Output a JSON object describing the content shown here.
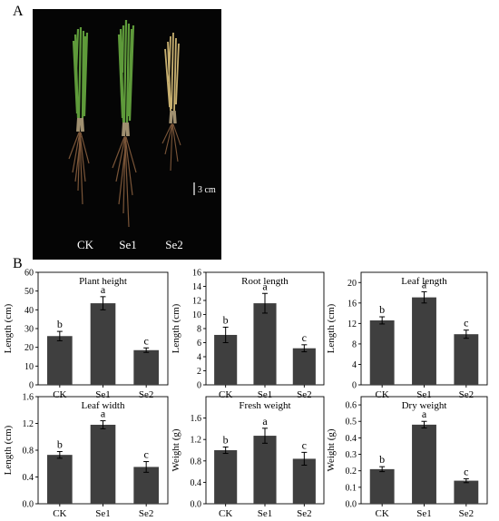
{
  "panel_labels": {
    "a": "A",
    "b": "B"
  },
  "photo": {
    "samples": [
      "CK",
      "Se1",
      "Se2"
    ],
    "scale_label": "3 cm",
    "colors": {
      "background": "#050505",
      "healthy_leaf": "#5e9a3a",
      "yellow_leaf": "#c8b070",
      "root": "#7a5538"
    }
  },
  "colors": {
    "bar": "#3f3f3f",
    "axis": "#000000"
  },
  "chart_data": [
    {
      "type": "bar",
      "title": "Plant height",
      "ylabel": "Length (cm)",
      "categories": [
        "CK",
        "Se1",
        "Se2"
      ],
      "values": [
        26,
        43.5,
        18.5
      ],
      "errors": [
        2.5,
        3.5,
        1.2
      ],
      "letters": [
        "b",
        "a",
        "c"
      ],
      "ylim": [
        0,
        60
      ],
      "yticks": [
        0,
        10,
        20,
        30,
        40,
        50,
        60
      ],
      "ytick_labels": [
        "0",
        "10",
        "20",
        "30",
        "40",
        "50",
        "60"
      ]
    },
    {
      "type": "bar",
      "title": "Root length",
      "ylabel": "Length (cm)",
      "categories": [
        "CK",
        "Se1",
        "Se2"
      ],
      "values": [
        7.1,
        11.6,
        5.2
      ],
      "errors": [
        1.1,
        1.4,
        0.5
      ],
      "letters": [
        "b",
        "a",
        "c"
      ],
      "ylim": [
        0,
        16
      ],
      "yticks": [
        0,
        2,
        4,
        6,
        8,
        10,
        12,
        14,
        16
      ],
      "ytick_labels": [
        "0",
        "2",
        "4",
        "6",
        "8",
        "10",
        "12",
        "14",
        "16"
      ]
    },
    {
      "type": "bar",
      "title": "Leaf length",
      "ylabel": "Length (cm)",
      "categories": [
        "CK",
        "Se1",
        "Se2"
      ],
      "values": [
        12.6,
        17.1,
        9.9
      ],
      "errors": [
        0.7,
        1.1,
        0.8
      ],
      "letters": [
        "b",
        "a",
        "c"
      ],
      "ylim": [
        0,
        22
      ],
      "yticks": [
        0,
        4,
        8,
        12,
        16,
        20
      ],
      "ytick_labels": [
        "0",
        "4",
        "8",
        "12",
        "16",
        "20"
      ]
    },
    {
      "type": "bar",
      "title": "Leaf width",
      "ylabel": "Length (cm)",
      "categories": [
        "CK",
        "Se1",
        "Se2"
      ],
      "values": [
        0.73,
        1.18,
        0.55
      ],
      "errors": [
        0.05,
        0.06,
        0.08
      ],
      "letters": [
        "b",
        "a",
        "c"
      ],
      "ylim": [
        0,
        1.6
      ],
      "yticks": [
        0,
        0.4,
        0.8,
        1.2,
        1.6
      ],
      "ytick_labels": [
        "0.0",
        "0.4",
        "0.8",
        "1.2",
        "1.6"
      ]
    },
    {
      "type": "bar",
      "title": "Fresh weight",
      "ylabel": "Weight (g)",
      "categories": [
        "CK",
        "Se1",
        "Se2"
      ],
      "values": [
        1.0,
        1.27,
        0.84
      ],
      "errors": [
        0.06,
        0.14,
        0.12
      ],
      "letters": [
        "b",
        "a",
        "c"
      ],
      "ylim": [
        0,
        2.0
      ],
      "yticks": [
        0,
        0.4,
        0.8,
        1.2,
        1.6
      ],
      "ytick_labels": [
        "0.0",
        "0.4",
        "0.8",
        "1.2",
        "1.6"
      ]
    },
    {
      "type": "bar",
      "title": "Dry weight",
      "ylabel": "Weight (g)",
      "categories": [
        "CK",
        "Se1",
        "Se2"
      ],
      "values": [
        0.21,
        0.48,
        0.14
      ],
      "errors": [
        0.015,
        0.02,
        0.012
      ],
      "letters": [
        "b",
        "a",
        "c"
      ],
      "ylim": [
        0,
        0.65
      ],
      "yticks": [
        0,
        0.1,
        0.2,
        0.3,
        0.4,
        0.5,
        0.6
      ],
      "ytick_labels": [
        "0.0",
        "0.1",
        "0.2",
        "0.3",
        "0.4",
        "0.5",
        "0.6"
      ]
    }
  ]
}
